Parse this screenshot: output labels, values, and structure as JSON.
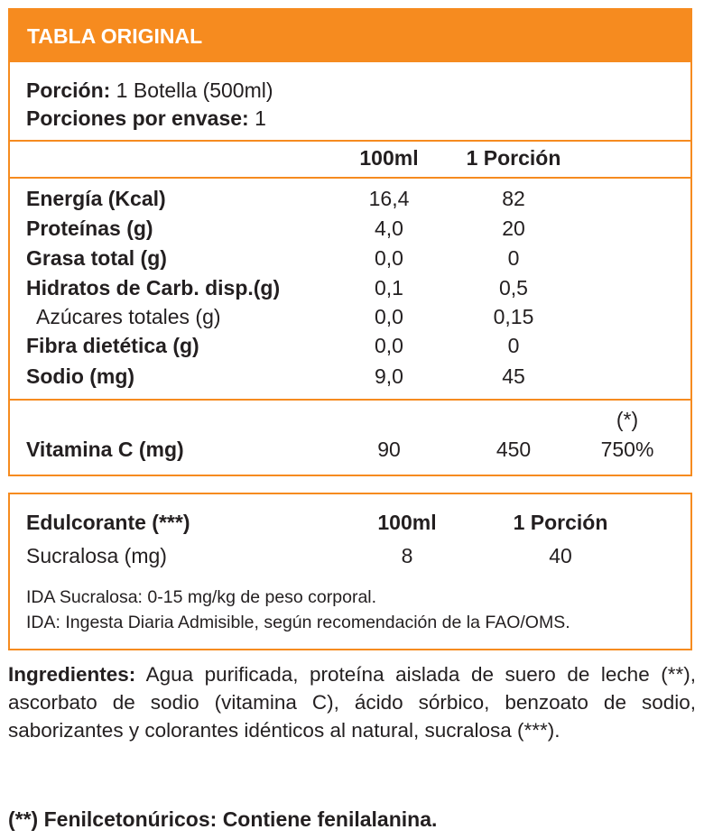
{
  "header": {
    "title": "TABLA ORIGINAL"
  },
  "serving": {
    "portion_label": "Porción:",
    "portion_value": "1 Botella (500ml)",
    "portions_label": "Porciones por envase:",
    "portions_value": "1"
  },
  "columns": {
    "per100": "100ml",
    "perPortion": "1 Porción"
  },
  "nutrients": [
    {
      "name": "Energía (Kcal)",
      "v100": "16,4",
      "vPortion": "82"
    },
    {
      "name": "Proteínas (g)",
      "v100": "4,0",
      "vPortion": "20"
    },
    {
      "name": "Grasa total (g)",
      "v100": "0,0",
      "vPortion": "0"
    },
    {
      "name": "Hidratos de Carb. disp.(g)",
      "v100": "0,1",
      "vPortion": "0,5"
    },
    {
      "name": "Azúcares totales (g)",
      "v100": "0,0",
      "vPortion": "0,15"
    },
    {
      "name": "Fibra dietética (g)",
      "v100": "0,0",
      "vPortion": "0"
    },
    {
      "name": "Sodio (mg)",
      "v100": "9,0",
      "vPortion": "45"
    }
  ],
  "vitamin": {
    "note": "(*)",
    "name": "Vitamina C (mg)",
    "v100": "90",
    "vPortion": "450",
    "pct": "750%"
  },
  "sweetener": {
    "header": "Edulcorante (***)",
    "col100": "100ml",
    "colPortion": "1 Porción",
    "name": "Sucralosa (mg)",
    "v100": "8",
    "vPortion": "40",
    "note1": "IDA Sucralosa: 0-15 mg/kg de peso corporal.",
    "note2": "IDA: Ingesta Diaria Admisible, según recomendación de la FAO/OMS."
  },
  "ingredients": {
    "label": "Ingredientes:",
    "text": " Agua purificada, proteína aislada de suero de leche (**), ascorbato de sodio (vitamina C), ácido sórbico, benzoato de sodio, saborizantes y colorantes idénticos al natural, sucralosa (***)."
  },
  "warning": "(**) Fenilcetonúricos: Contiene fenilalanina."
}
